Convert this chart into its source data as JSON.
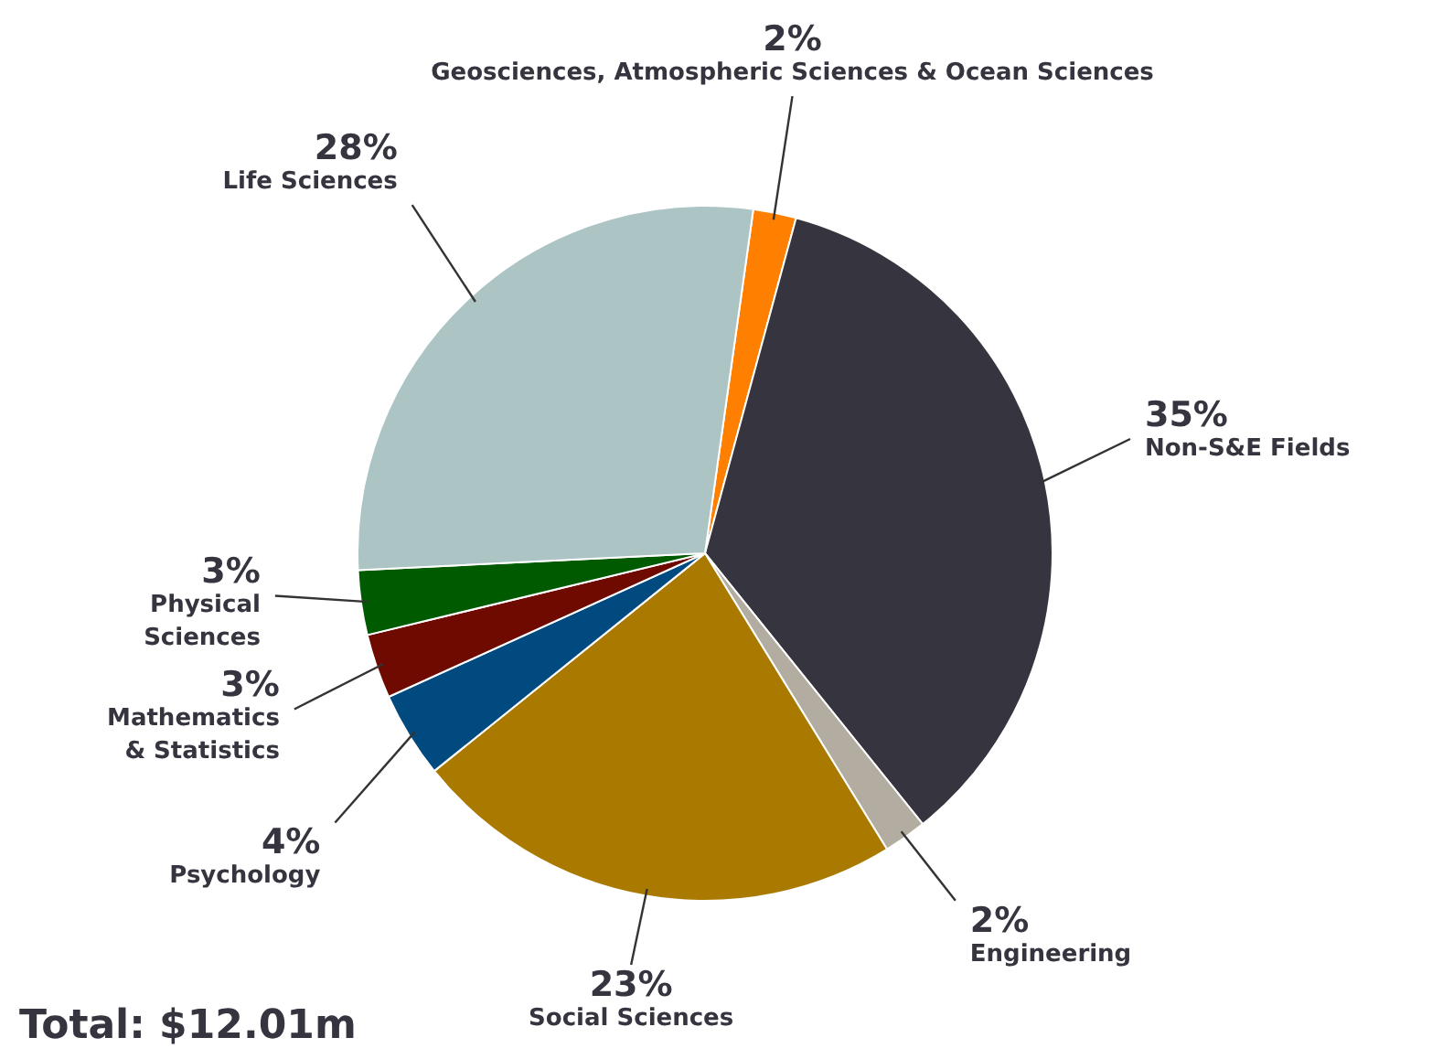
{
  "chart_data": {
    "type": "pie",
    "categories": [
      "Geosciences, Atmospheric Sciences & Ocean Sciences",
      "Non-S&E Fields",
      "Engineering",
      "Social Sciences",
      "Psychology",
      "Mathematics & Statistics",
      "Physical Sciences",
      "Life Sciences"
    ],
    "values": [
      2,
      35,
      2,
      23,
      4,
      3,
      3,
      28
    ],
    "value_labels": [
      "2%",
      "35%",
      "2%",
      "23%",
      "4%",
      "3%",
      "3%",
      "28%"
    ],
    "colors": [
      "#ff7f00",
      "#36343f",
      "#b3aca1",
      "#aa7a00",
      "#004a80",
      "#6e0a00",
      "#005a00",
      "#acc4c4"
    ],
    "annotations": [
      "Total: $12.01m"
    ]
  }
}
